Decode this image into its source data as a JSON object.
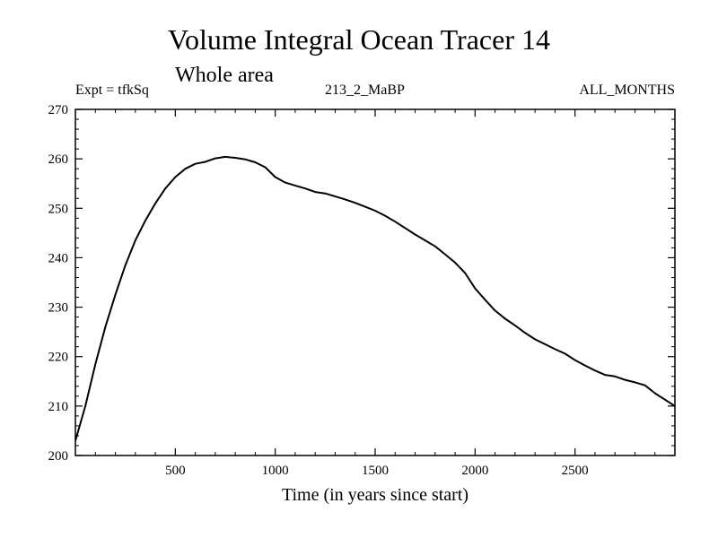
{
  "header": {
    "title": "Volume Integral Ocean Tracer 14",
    "subtitle": "Whole area",
    "expt": "Expt = tfkSq",
    "run_id": "213_2_MaBP",
    "months": "ALL_MONTHS"
  },
  "chart_data": {
    "type": "line",
    "title": "Volume Integral Ocean Tracer 14",
    "subtitle": "Whole area",
    "xlabel": "Time (in years since start)",
    "ylabel": "",
    "xlim": [
      0,
      3000
    ],
    "ylim": [
      200,
      270
    ],
    "xticks": [
      500,
      1000,
      1500,
      2000,
      2500
    ],
    "yticks": [
      200,
      210,
      220,
      230,
      240,
      250,
      260,
      270
    ],
    "grid": false,
    "series": [
      {
        "values": [
          [
            0,
            203
          ],
          [
            50,
            210
          ],
          [
            100,
            218.5
          ],
          [
            150,
            226
          ],
          [
            200,
            232.5
          ],
          [
            250,
            238.5
          ],
          [
            300,
            243.5
          ],
          [
            350,
            247.5
          ],
          [
            400,
            251
          ],
          [
            450,
            254
          ],
          [
            500,
            256.3
          ],
          [
            550,
            258
          ],
          [
            600,
            259
          ],
          [
            650,
            259.4
          ],
          [
            700,
            260.1
          ],
          [
            750,
            260.4
          ],
          [
            800,
            260.2
          ],
          [
            850,
            259.9
          ],
          [
            900,
            259.3
          ],
          [
            950,
            258.3
          ],
          [
            1000,
            256.3
          ],
          [
            1050,
            255.2
          ],
          [
            1100,
            254.6
          ],
          [
            1150,
            254
          ],
          [
            1200,
            253.3
          ],
          [
            1250,
            253
          ],
          [
            1300,
            252.4
          ],
          [
            1350,
            251.8
          ],
          [
            1400,
            251.1
          ],
          [
            1450,
            250.3
          ],
          [
            1500,
            249.5
          ],
          [
            1550,
            248.5
          ],
          [
            1600,
            247.3
          ],
          [
            1650,
            246
          ],
          [
            1700,
            244.7
          ],
          [
            1750,
            243.5
          ],
          [
            1800,
            242.3
          ],
          [
            1850,
            240.7
          ],
          [
            1900,
            239
          ],
          [
            1950,
            236.9
          ],
          [
            2000,
            233.8
          ],
          [
            2050,
            231.5
          ],
          [
            2100,
            229.3
          ],
          [
            2150,
            227.7
          ],
          [
            2200,
            226.3
          ],
          [
            2250,
            224.8
          ],
          [
            2300,
            223.5
          ],
          [
            2350,
            222.5
          ],
          [
            2400,
            221.5
          ],
          [
            2450,
            220.6
          ],
          [
            2500,
            219.3
          ],
          [
            2550,
            218.2
          ],
          [
            2600,
            217.2
          ],
          [
            2650,
            216.3
          ],
          [
            2700,
            216
          ],
          [
            2750,
            215.3
          ],
          [
            2800,
            214.8
          ],
          [
            2850,
            214.2
          ],
          [
            2900,
            212.6
          ],
          [
            2950,
            211.3
          ],
          [
            3000,
            210
          ]
        ]
      }
    ]
  }
}
